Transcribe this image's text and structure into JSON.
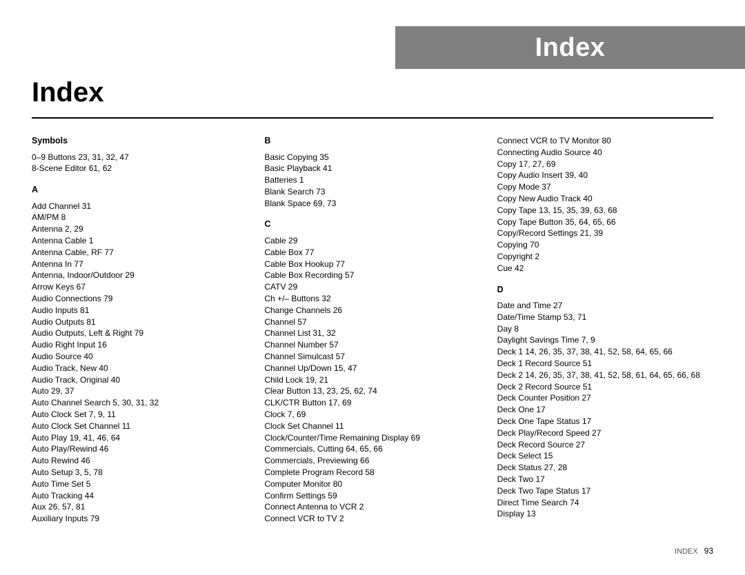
{
  "tab_title": "Index",
  "main_title": "Index",
  "footer_label": "INDEX",
  "footer_page": "93",
  "columns": [
    {
      "sections": [
        {
          "heading": "Symbols",
          "entries": [
            "0–9 Buttons  23, 31, 32, 47",
            "8-Scene Editor  61, 62"
          ]
        },
        {
          "heading": "A",
          "entries": [
            "Add Channel  31",
            "AM/PM  8",
            "Antenna  2, 29",
            "Antenna Cable  1",
            "Antenna Cable, RF  77",
            "Antenna In  77",
            "Antenna, Indoor/Outdoor  29",
            "Arrow Keys  67",
            "Audio Connections  79",
            "Audio Inputs  81",
            "Audio Outputs  81",
            "Audio Outputs, Left & Right  79",
            "Audio Right Input  16",
            "Audio Source  40",
            "Audio Track, New  40",
            "Audio Track, Original  40",
            "Auto  29, 37",
            "Auto Channel Search  5, 30, 31, 32",
            "Auto Clock Set  7, 9, 11",
            "Auto Clock Set Channel  11",
            "Auto Play  19, 41, 46, 64",
            "Auto Play/Rewind  46",
            "Auto Rewind  46",
            "Auto Setup  3, 5, 78",
            "Auto Time Set  5",
            "Auto Tracking  44",
            "Aux  26, 57, 81",
            "Auxiliary Inputs  79"
          ]
        }
      ]
    },
    {
      "sections": [
        {
          "heading": "B",
          "entries": [
            "Basic Copying  35",
            "Basic Playback  41",
            "Batteries  1",
            "Blank Search  73",
            "Blank Space  69, 73"
          ]
        },
        {
          "heading": "C",
          "entries": [
            "Cable  29",
            "Cable Box  77",
            "Cable Box Hookup  77",
            "Cable Box Recording  57",
            "CATV  29",
            "Ch +/– Buttons  32",
            "Change Channels  26",
            "Channel  57",
            "Channel List  31, 32",
            "Channel Number  57",
            "Channel Simulcast  57",
            "Channel Up/Down  15, 47",
            "Child Lock  19, 21",
            "Clear Button  13, 23, 25, 62, 74",
            "CLK/CTR Button  17, 69",
            "Clock  7, 69",
            "Clock Set Channel  11",
            "Clock/Counter/Time Remaining Display  69",
            "Commercials, Cutting  64, 65, 66",
            "Commercials, Previewing  66",
            "Complete Program Record  58",
            "Computer Monitor  80",
            "Confirm Settings  59",
            "Connect Antenna to VCR  2",
            "Connect VCR to TV  2"
          ]
        }
      ]
    },
    {
      "sections": [
        {
          "heading": "",
          "entries": [
            "Connect VCR to TV Monitor  80",
            "Connecting Audio Source  40",
            "Copy  17, 27, 69",
            "Copy Audio Insert  39, 40",
            "Copy Mode  37",
            "Copy New Audio Track  40",
            "Copy Tape  13, 15, 35, 39, 63, 68",
            "Copy Tape Button  35, 64, 65, 66",
            "Copy/Record Settings  21, 39",
            "Copying  70",
            "Copyright  2",
            "Cue  42"
          ]
        },
        {
          "heading": "D",
          "entries": [
            "Date and Time  27",
            "Date/Time Stamp  53, 71",
            "Day  8",
            "Daylight Savings Time  7, 9",
            "Deck 1  14, 26, 35, 37, 38, 41, 52, 58, 64, 65, 66",
            "Deck 1 Record Source  51",
            "Deck 2  14, 26, 35, 37, 38, 41, 52, 58, 61, 64, 65, 66, 68",
            "Deck 2 Record Source  51",
            "Deck Counter Position  27",
            "Deck One  17",
            "Deck One Tape Status  17",
            "Deck Play/Record Speed  27",
            "Deck Record Source  27",
            "Deck Select  15",
            "Deck Status  27, 28",
            "Deck Two  17",
            "Deck Two Tape Status  17",
            "Direct Time Search  74",
            "Display  13"
          ]
        }
      ]
    }
  ]
}
